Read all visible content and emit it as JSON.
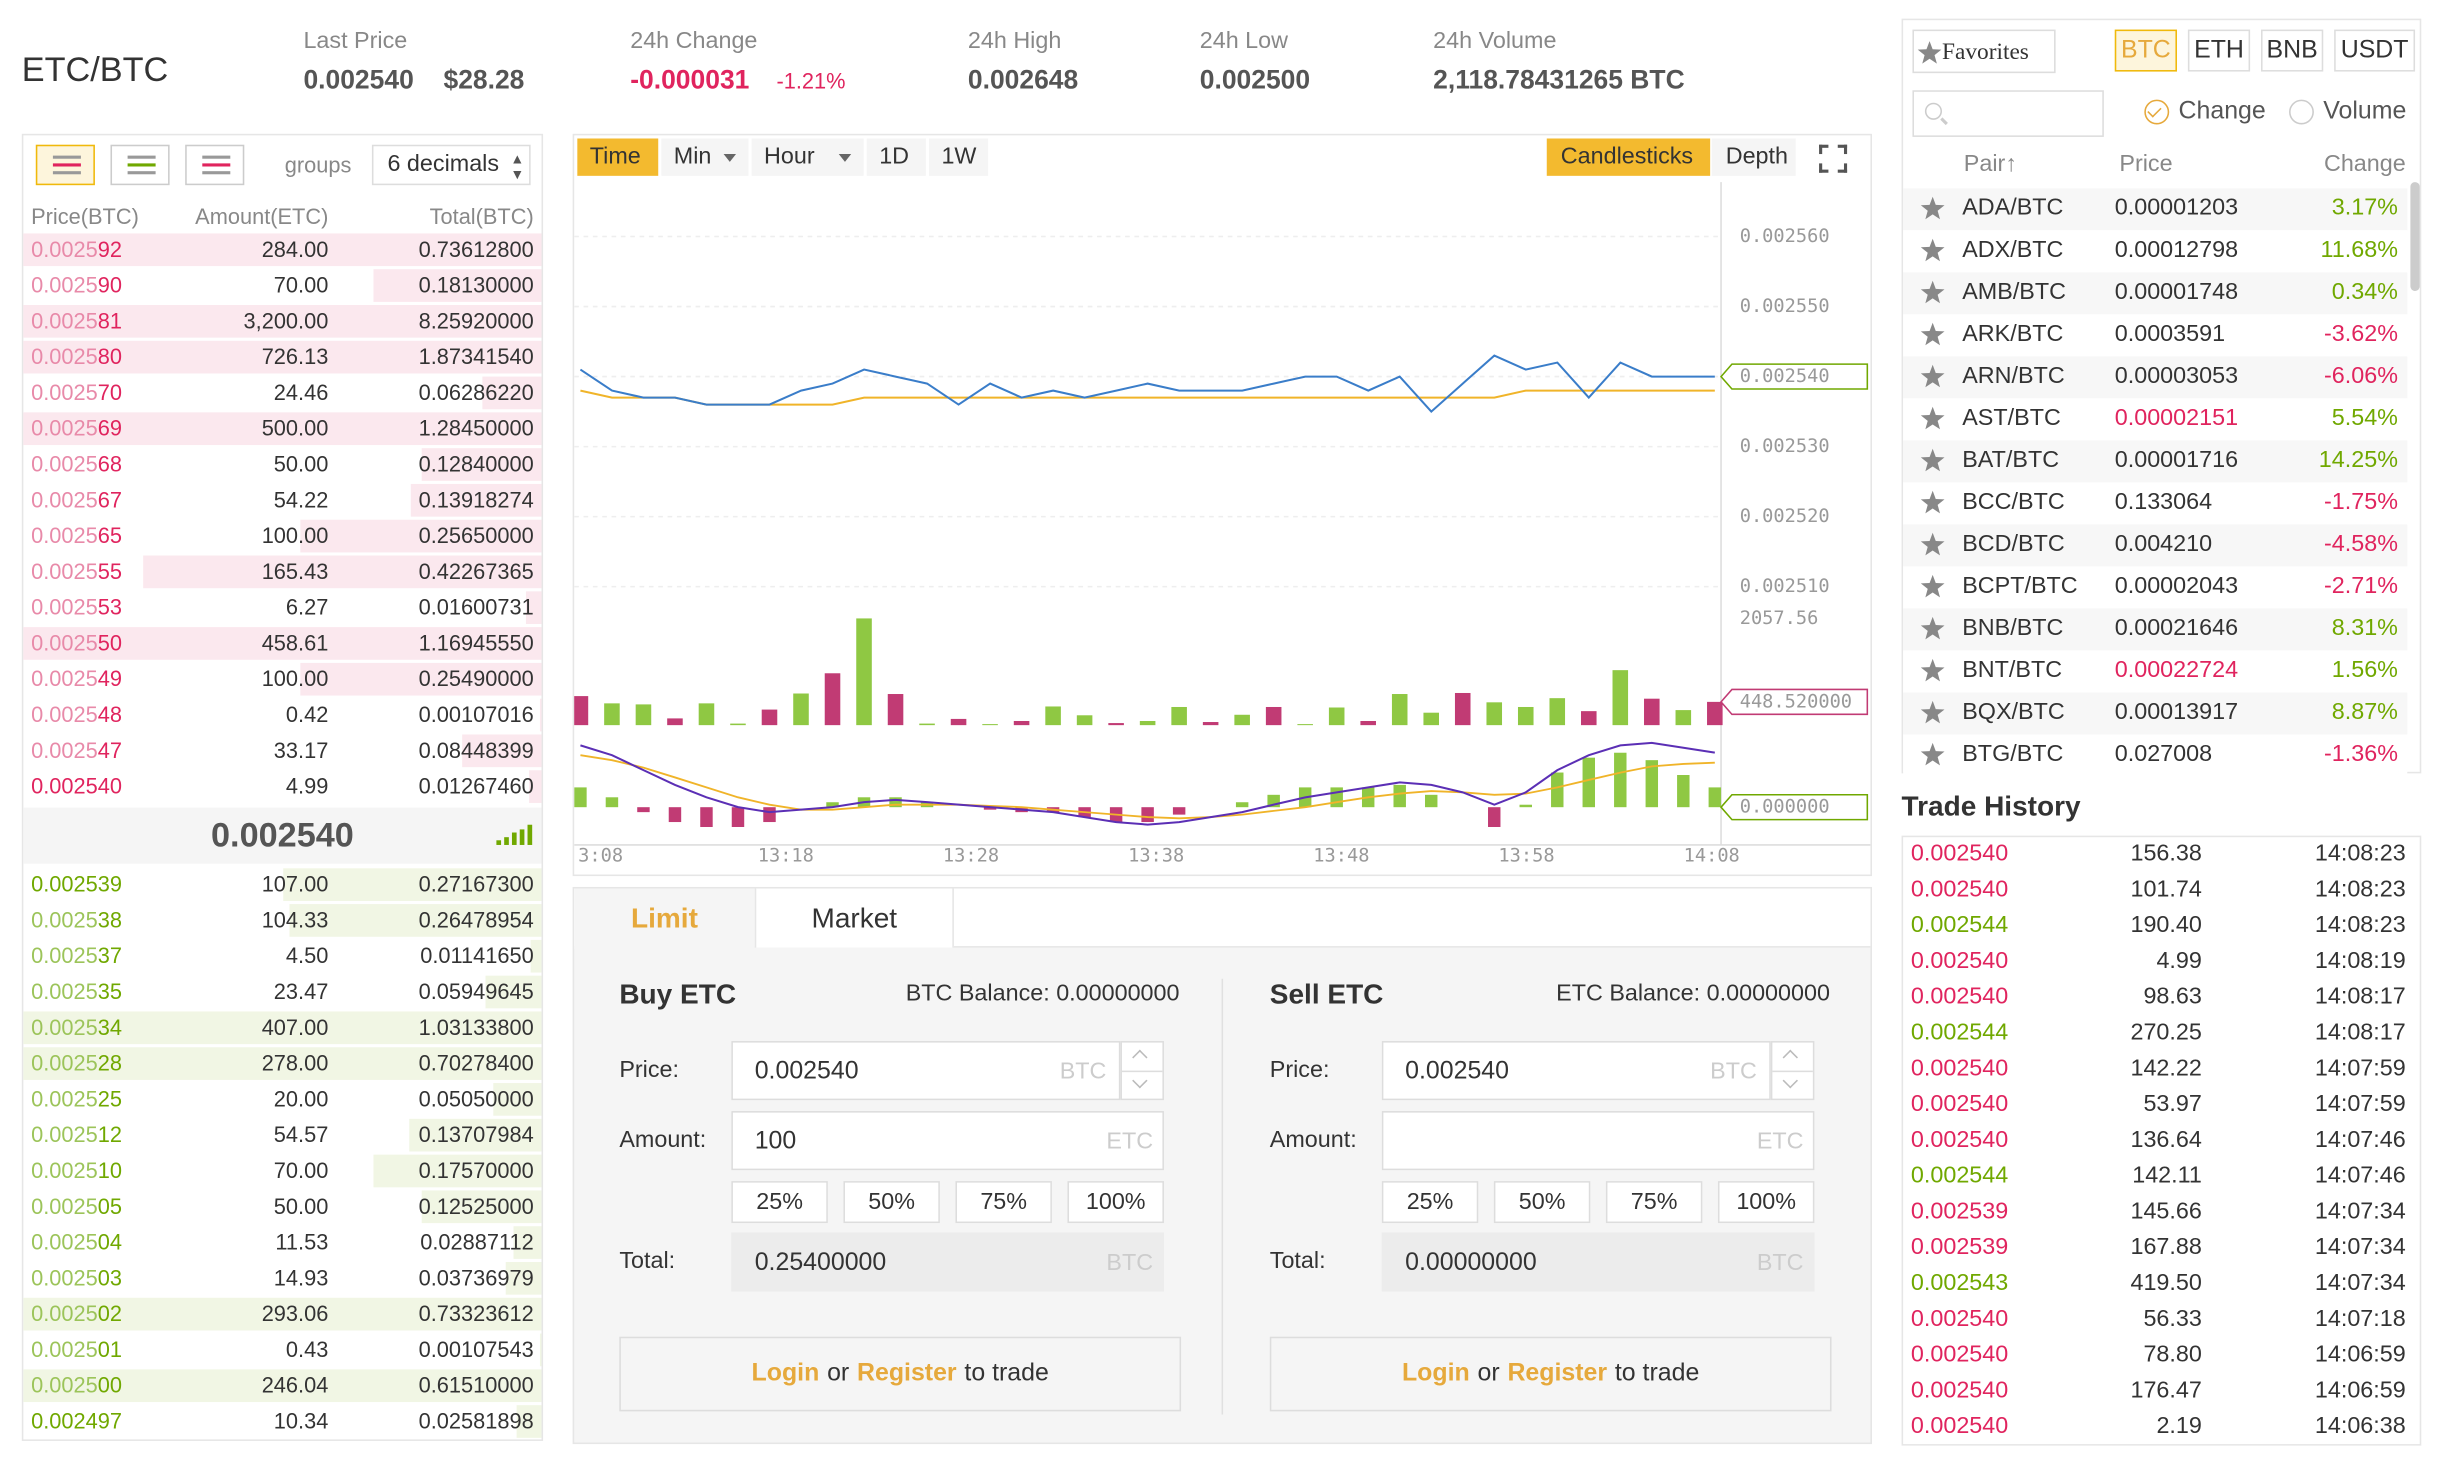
{
  "header": {
    "pair": "ETC/BTC",
    "stats": [
      {
        "label": "Last Price",
        "value": "0.002540",
        "extra": "$28.28"
      },
      {
        "label": "24h Change",
        "value": "-0.000031",
        "extra": "-1.21%",
        "color": "#e0245e"
      },
      {
        "label": "24h High",
        "value": "0.002648"
      },
      {
        "label": "24h Low",
        "value": "0.002500"
      },
      {
        "label": "24h Volume",
        "value": "2,118.78431265 BTC"
      }
    ]
  },
  "order_book": {
    "groups_label": "groups",
    "decimals": "6 decimals",
    "columns": [
      "Price(BTC)",
      "Amount(ETC)",
      "Total(BTC)"
    ],
    "asks": [
      [
        "0.002592",
        "284.00",
        "0.73612800"
      ],
      [
        "0.002590",
        "70.00",
        "0.18130000"
      ],
      [
        "0.002581",
        "3,200.00",
        "8.25920000"
      ],
      [
        "0.002580",
        "726.13",
        "1.87341540"
      ],
      [
        "0.002570",
        "24.46",
        "0.06286220"
      ],
      [
        "0.002569",
        "500.00",
        "1.28450000"
      ],
      [
        "0.002568",
        "50.00",
        "0.12840000"
      ],
      [
        "0.002567",
        "54.22",
        "0.13918274"
      ],
      [
        "0.002565",
        "100.00",
        "0.25650000"
      ],
      [
        "0.002555",
        "165.43",
        "0.42267365"
      ],
      [
        "0.002553",
        "6.27",
        "0.01600731"
      ],
      [
        "0.002550",
        "458.61",
        "1.16945550"
      ],
      [
        "0.002549",
        "100.00",
        "0.25490000"
      ],
      [
        "0.002548",
        "0.42",
        "0.00107016"
      ],
      [
        "0.002547",
        "33.17",
        "0.08448399"
      ],
      [
        "0.002540",
        "4.99",
        "0.01267460"
      ]
    ],
    "last": "0.002540",
    "bids": [
      [
        "0.002539",
        "107.00",
        "0.27167300"
      ],
      [
        "0.002538",
        "104.33",
        "0.26478954"
      ],
      [
        "0.002537",
        "4.50",
        "0.01141650"
      ],
      [
        "0.002535",
        "23.47",
        "0.05949645"
      ],
      [
        "0.002534",
        "407.00",
        "1.03133800"
      ],
      [
        "0.002528",
        "278.00",
        "0.70278400"
      ],
      [
        "0.002525",
        "20.00",
        "0.05050000"
      ],
      [
        "0.002512",
        "54.57",
        "0.13707984"
      ],
      [
        "0.002510",
        "70.00",
        "0.17570000"
      ],
      [
        "0.002505",
        "50.00",
        "0.12525000"
      ],
      [
        "0.002504",
        "11.53",
        "0.02887112"
      ],
      [
        "0.002503",
        "14.93",
        "0.03736979"
      ],
      [
        "0.002502",
        "293.06",
        "0.73323612"
      ],
      [
        "0.002501",
        "0.43",
        "0.00107543"
      ],
      [
        "0.002500",
        "246.04",
        "0.61510000"
      ],
      [
        "0.002497",
        "10.34",
        "0.02581898"
      ]
    ]
  },
  "chart": {
    "intervals": [
      "Time",
      "Min",
      "Hour",
      "1D",
      "1W"
    ],
    "views": [
      "Candlesticks",
      "Depth"
    ],
    "price_line": {
      "color": "#3a7dc9",
      "values": [
        0.002541,
        0.002538,
        0.002537,
        0.002537,
        0.002536,
        0.002536,
        0.002536,
        0.002538,
        0.002539,
        0.002541,
        0.00254,
        0.002539,
        0.002536,
        0.002539,
        0.002537,
        0.002538,
        0.002537,
        0.002538,
        0.002539,
        0.002538,
        0.002538,
        0.002538,
        0.002539,
        0.00254,
        0.00254,
        0.002538,
        0.00254,
        0.002535,
        0.002539,
        0.002543,
        0.002541,
        0.002542,
        0.002537,
        0.002542,
        0.00254,
        0.00254,
        0.00254
      ]
    },
    "ma_line": {
      "color": "#f0b429",
      "values": [
        0.002538,
        0.002537,
        0.002537,
        0.002537,
        0.002536,
        0.002536,
        0.002536,
        0.002536,
        0.002536,
        0.002537,
        0.002537,
        0.002537,
        0.002537,
        0.002537,
        0.002537,
        0.002537,
        0.002537,
        0.002537,
        0.002537,
        0.002537,
        0.002537,
        0.002537,
        0.002537,
        0.002537,
        0.002537,
        0.002537,
        0.002537,
        0.002537,
        0.002537,
        0.002537,
        0.002538,
        0.002538,
        0.002538,
        0.002538,
        0.002538,
        0.002538,
        0.002538
      ]
    },
    "ylim": [
      0.0025,
      0.00257
    ],
    "yticks": [
      {
        "value": 0.00256,
        "label": "0.002560"
      },
      {
        "value": 0.00255,
        "label": "0.002550"
      },
      {
        "value": 0.00254,
        "label": "0.002540"
      },
      {
        "value": 0.00253,
        "label": "0.002530"
      },
      {
        "value": 0.00252,
        "label": "0.002520"
      },
      {
        "value": 0.00251,
        "label": "0.002510"
      }
    ],
    "last_price": {
      "value": 0.00254,
      "label": "0.002540"
    },
    "volume": {
      "ylim": [
        0,
        2100
      ],
      "values": [
        560,
        420,
        400,
        130,
        420,
        30,
        300,
        610,
        1000,
        2057.56,
        600,
        30,
        120,
        20,
        80,
        360,
        190,
        40,
        80,
        350,
        60,
        200,
        350,
        20,
        340,
        80,
        600,
        240,
        620,
        440,
        350,
        520,
        270,
        1060,
        510,
        290,
        448.52
      ],
      "colors": [
        "#c13b74",
        "#8fc843",
        "#8fc843",
        "#c13b74",
        "#8fc843",
        "#8fc843",
        "#c13b74",
        "#8fc843",
        "#c13b74",
        "#8fc843",
        "#c13b74",
        "#8fc843",
        "#c13b74",
        "#8fc843",
        "#c13b74",
        "#8fc843",
        "#8fc843",
        "#c13b74",
        "#8fc843",
        "#8fc843",
        "#c13b74",
        "#8fc843",
        "#c13b74",
        "#8fc843",
        "#8fc843",
        "#c13b74",
        "#8fc843",
        "#8fc843",
        "#c13b74",
        "#8fc843",
        "#8fc843",
        "#8fc843",
        "#c13b74",
        "#8fc843",
        "#c13b74",
        "#8fc843",
        "#c13b74"
      ],
      "max": {
        "value": 2057.56,
        "label": "2057.56"
      },
      "current": {
        "value": 448.52,
        "label": "448.520000"
      }
    },
    "macd": {
      "ylim": [
        -2.8e-06,
        6e-06
      ],
      "dif_color": "#5b2fb5",
      "dea_color": "#f0b429",
      "dif": [
        5e-06,
        4.2e-06,
        3e-06,
        1.8e-06,
        8e-07,
        0.0,
        -4e-07,
        -2e-07,
        0.0,
        4e-07,
        6e-07,
        4e-07,
        2e-07,
        0.0,
        -2e-07,
        -4e-07,
        -8e-07,
        -1.2e-06,
        -1.4e-06,
        -1.2e-06,
        -8e-07,
        -4e-07,
        2e-07,
        8e-07,
        1.2e-06,
        1.6e-06,
        2e-06,
        1.8e-06,
        1.2e-06,
        2e-07,
        1.2e-06,
        3e-06,
        4.2e-06,
        5e-06,
        5.2e-06,
        4.8e-06,
        4.4e-06
      ],
      "dea": [
        4.2e-06,
        3.8e-06,
        3.2e-06,
        2.4e-06,
        1.6e-06,
        8e-07,
        2e-07,
        -2e-07,
        -2e-07,
        0.0,
        2e-07,
        2e-07,
        2e-07,
        1e-07,
        0.0,
        -2e-07,
        -4e-07,
        -6e-07,
        -8e-07,
        -9e-07,
        -8e-07,
        -6e-07,
        -3e-07,
        0.0,
        4e-07,
        8e-07,
        1.1e-06,
        1.3e-06,
        1.2e-06,
        1e-06,
        1.1e-06,
        1.6e-06,
        2.2e-06,
        2.8e-06,
        3.3e-06,
        3.5e-06,
        3.6e-06
      ],
      "hist": [
        1.6e-06,
        8e-07,
        -4e-07,
        -1.2e-06,
        -1.6e-06,
        -1.6e-06,
        -1.2e-06,
        0.0,
        4e-07,
        8e-07,
        8e-07,
        4e-07,
        0.0,
        -2e-07,
        -4e-07,
        -4e-07,
        -8e-07,
        -1.2e-06,
        -1.2e-06,
        -6e-07,
        0.0,
        4e-07,
        1e-06,
        1.6e-06,
        1.6e-06,
        1.6e-06,
        1.8e-06,
        1e-06,
        0.0,
        -1.6e-06,
        2e-07,
        2.8e-06,
        4e-06,
        4.4e-06,
        3.8e-06,
        2.6e-06,
        1.6e-06
      ],
      "zero": {
        "value": 0,
        "label": "0.000000"
      }
    },
    "xticks": [
      "3:08",
      "13:18",
      "13:28",
      "13:38",
      "13:48",
      "13:58",
      "14:08"
    ]
  },
  "order_form": {
    "tabs": [
      "Limit",
      "Market"
    ],
    "panels": [
      {
        "title": "Buy ETC",
        "balance": "BTC Balance: 0.00000000",
        "price_label": "Price:",
        "price": "0.002540",
        "price_unit": "BTC",
        "amount_label": "Amount:",
        "amount": "100",
        "amount_unit": "ETC",
        "percents": [
          "25%",
          "50%",
          "75%",
          "100%"
        ],
        "total_label": "Total:",
        "total": "0.25400000",
        "total_unit": "BTC",
        "login": "Login",
        "or": "or",
        "register": "Register",
        "to_trade": "to trade"
      },
      {
        "title": "Sell ETC",
        "balance": "ETC Balance: 0.00000000",
        "price_label": "Price:",
        "price": "0.002540",
        "price_unit": "BTC",
        "amount_label": "Amount:",
        "amount": "",
        "amount_unit": "ETC",
        "percents": [
          "25%",
          "50%",
          "75%",
          "100%"
        ],
        "total_label": "Total:",
        "total": "0.00000000",
        "total_unit": "BTC",
        "login": "Login",
        "or": "or",
        "register": "Register",
        "to_trade": "to trade"
      }
    ]
  },
  "markets": {
    "favorites": "Favorites",
    "quotes": [
      "BTC",
      "ETH",
      "BNB",
      "USDT"
    ],
    "sort_options": [
      "Change",
      "Volume"
    ],
    "columns": [
      "Pair↑",
      "Price",
      "Change"
    ],
    "rows": [
      {
        "pair": "ADA/BTC",
        "price": "0.00001203",
        "change": "3.17%"
      },
      {
        "pair": "ADX/BTC",
        "price": "0.00012798",
        "change": "11.68%"
      },
      {
        "pair": "AMB/BTC",
        "price": "0.00001748",
        "change": "0.34%"
      },
      {
        "pair": "ARK/BTC",
        "price": "0.0003591",
        "change": "-3.62%"
      },
      {
        "pair": "ARN/BTC",
        "price": "0.00003053",
        "change": "-6.06%"
      },
      {
        "pair": "AST/BTC",
        "price": "0.00002151",
        "change": "5.54%",
        "price_color": "#e0245e"
      },
      {
        "pair": "BAT/BTC",
        "price": "0.00001716",
        "change": "14.25%"
      },
      {
        "pair": "BCC/BTC",
        "price": "0.133064",
        "change": "-1.75%"
      },
      {
        "pair": "BCD/BTC",
        "price": "0.004210",
        "change": "-4.58%"
      },
      {
        "pair": "BCPT/BTC",
        "price": "0.00002043",
        "change": "-2.71%"
      },
      {
        "pair": "BNB/BTC",
        "price": "0.00021646",
        "change": "8.31%"
      },
      {
        "pair": "BNT/BTC",
        "price": "0.00022724",
        "change": "1.56%",
        "price_color": "#e0245e"
      },
      {
        "pair": "BQX/BTC",
        "price": "0.00013917",
        "change": "8.87%"
      },
      {
        "pair": "BTG/BTC",
        "price": "0.027008",
        "change": "-1.36%"
      }
    ]
  },
  "trade_history": {
    "title": "Trade History",
    "rows": [
      {
        "price": "0.002540",
        "amount": "156.38",
        "time": "14:08:23",
        "color": "#e0245e"
      },
      {
        "price": "0.002540",
        "amount": "101.74",
        "time": "14:08:23",
        "color": "#e0245e"
      },
      {
        "price": "0.002544",
        "amount": "190.40",
        "time": "14:08:23",
        "color": "#70a800"
      },
      {
        "price": "0.002540",
        "amount": "4.99",
        "time": "14:08:19",
        "color": "#e0245e"
      },
      {
        "price": "0.002540",
        "amount": "98.63",
        "time": "14:08:17",
        "color": "#e0245e"
      },
      {
        "price": "0.002544",
        "amount": "270.25",
        "time": "14:08:17",
        "color": "#70a800"
      },
      {
        "price": "0.002540",
        "amount": "142.22",
        "time": "14:07:59",
        "color": "#e0245e"
      },
      {
        "price": "0.002540",
        "amount": "53.97",
        "time": "14:07:59",
        "color": "#e0245e"
      },
      {
        "price": "0.002540",
        "amount": "136.64",
        "time": "14:07:46",
        "color": "#e0245e"
      },
      {
        "price": "0.002544",
        "amount": "142.11",
        "time": "14:07:46",
        "color": "#70a800"
      },
      {
        "price": "0.002539",
        "amount": "145.66",
        "time": "14:07:34",
        "color": "#e0245e"
      },
      {
        "price": "0.002539",
        "amount": "167.88",
        "time": "14:07:34",
        "color": "#e0245e"
      },
      {
        "price": "0.002543",
        "amount": "419.50",
        "time": "14:07:34",
        "color": "#70a800"
      },
      {
        "price": "0.002540",
        "amount": "56.33",
        "time": "14:07:18",
        "color": "#e0245e"
      },
      {
        "price": "0.002540",
        "amount": "78.80",
        "time": "14:06:59",
        "color": "#e0245e"
      },
      {
        "price": "0.002540",
        "amount": "176.47",
        "time": "14:06:59",
        "color": "#e0245e"
      },
      {
        "price": "0.002540",
        "amount": "2.19",
        "time": "14:06:38",
        "color": "#e0245e"
      }
    ]
  }
}
